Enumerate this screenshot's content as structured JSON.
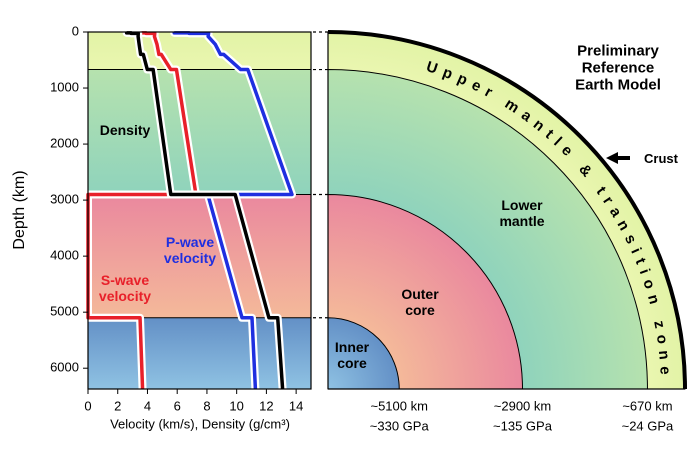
{
  "chart_data": {
    "type": "line",
    "title": "Preliminary Reference Earth Model",
    "xlabel": "Velocity (km/s), Density (g/cm³)",
    "ylabel": "Depth (km)",
    "xlim": [
      0,
      15
    ],
    "xticks": [
      0,
      2,
      4,
      6,
      8,
      10,
      12,
      14
    ],
    "ylim": [
      0,
      6371
    ],
    "yticks": [
      0,
      1000,
      2000,
      3000,
      4000,
      5000,
      6000
    ],
    "depth": [
      0,
      15,
      15,
      24,
      24,
      80,
      220,
      400,
      400,
      670,
      670,
      2900,
      2900,
      5100,
      5100,
      6371
    ],
    "series": [
      {
        "name": "S-wave velocity",
        "color": "#e8202a",
        "values": [
          3.2,
          3.2,
          3.9,
          3.9,
          4.49,
          4.47,
          4.64,
          4.77,
          4.93,
          5.57,
          5.95,
          7.26,
          0,
          0,
          3.5,
          3.67
        ]
      },
      {
        "name": "P-wave velocity",
        "color": "#1f2fe0",
        "values": [
          5.8,
          5.8,
          6.8,
          6.8,
          8.11,
          8.08,
          8.56,
          8.91,
          9.13,
          10.27,
          10.75,
          13.72,
          8.06,
          10.36,
          11.03,
          11.26
        ]
      },
      {
        "name": "Density",
        "color": "#000000",
        "values": [
          2.6,
          2.6,
          2.9,
          2.9,
          3.38,
          3.37,
          3.44,
          3.54,
          3.72,
          3.99,
          4.38,
          5.57,
          9.9,
          12.17,
          12.76,
          13.09
        ]
      }
    ],
    "layers": [
      {
        "name": "Upper mantle & transition zone",
        "colors": [
          "#eaf6b0",
          "#e2f3a6"
        ]
      },
      {
        "name": "Lower mantle",
        "top": 670,
        "top_label": "~670 km",
        "pressure_label": "~24 GPa",
        "colors": [
          "#8fd3bc",
          "#b6e2ae"
        ]
      },
      {
        "name": "Outer core",
        "top": 2900,
        "top_label": "~2900 km",
        "pressure_label": "~135 GPa",
        "colors": [
          "#f4b99a",
          "#ea889e"
        ]
      },
      {
        "name": "Inner core",
        "top": 5100,
        "top_label": "~5100 km",
        "pressure_label": "~330 GPa",
        "colors": [
          "#8fc2e3",
          "#6390c6"
        ]
      }
    ],
    "crust_label": "Crust"
  }
}
